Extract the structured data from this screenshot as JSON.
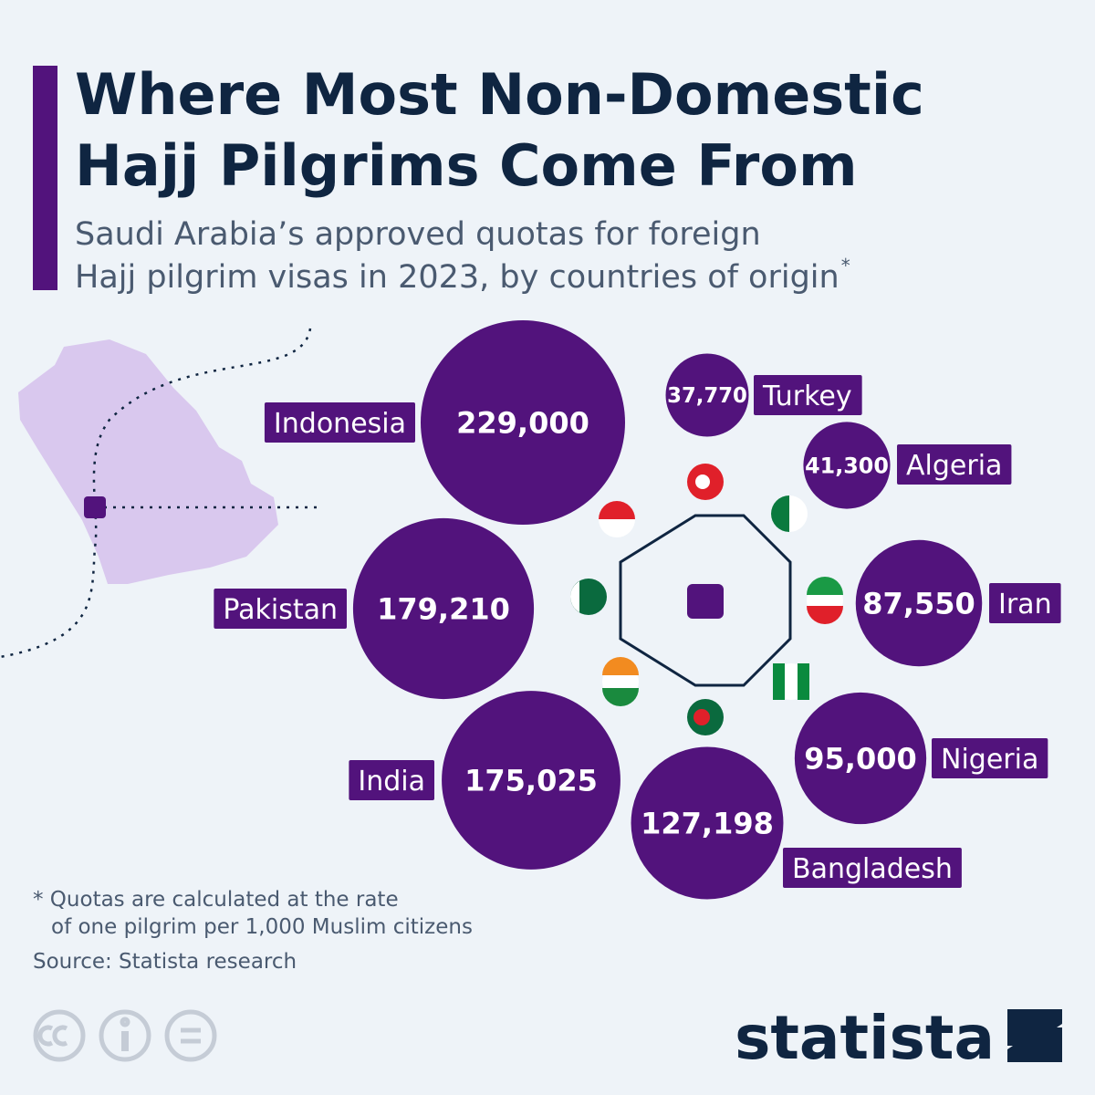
{
  "chart_data": {
    "type": "bubble",
    "title": [
      "Where Most Non-Domestic",
      "Hajj Pilgrims Come From"
    ],
    "subtitle": [
      "Saudi Arabia’s approved quotas for foreign",
      "Hajj pilgrim visas in 2023, by countries of origin"
    ],
    "subtitle_mark": "*",
    "categories": [
      "Indonesia",
      "Turkey",
      "Algeria",
      "Iran",
      "Nigeria",
      "Bangladesh",
      "India",
      "Pakistan"
    ],
    "values": [
      229000,
      37770,
      41300,
      87550,
      95000,
      127198,
      175025,
      179210
    ],
    "value_labels": [
      "229,000",
      "37,770",
      "41,300",
      "87,550",
      "95,000",
      "127,198",
      "175,025",
      "179,210"
    ],
    "color": "#52137c",
    "footnote": [
      "* Quotas are calculated at the rate",
      "of one pilgrim per 1,000 Muslim citizens"
    ],
    "source": "Source: Statista research",
    "brand": "statista"
  }
}
